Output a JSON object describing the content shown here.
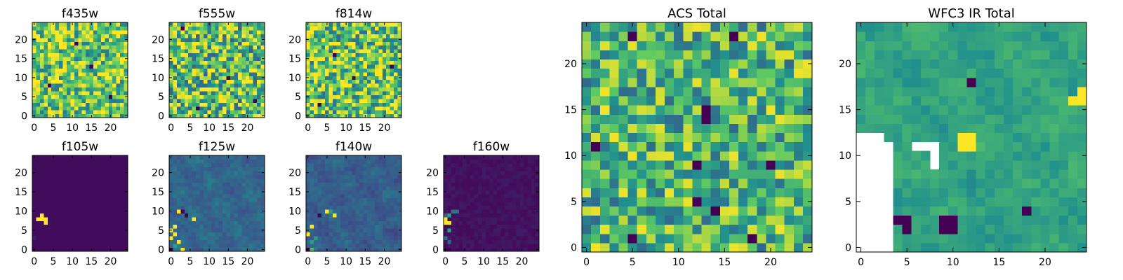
{
  "colormap": {
    "name": "viridis",
    "stops": [
      "#440154",
      "#3b528b",
      "#21908d",
      "#5dc963",
      "#fde725"
    ]
  },
  "chart_data": [
    {
      "type": "heatmap",
      "title": "f435w",
      "nx": 25,
      "ny": 25,
      "xlim": [
        0,
        24
      ],
      "ylim": [
        0,
        24
      ],
      "origin": "lower",
      "xticks": [
        0,
        5,
        10,
        15,
        20
      ],
      "yticks": [
        0,
        5,
        10,
        15,
        20
      ],
      "pattern": "random",
      "mean": 0.75,
      "spread": 0.35,
      "seed": 11,
      "outliers": [
        {
          "x": 11,
          "y": 19,
          "value": 0.0
        },
        {
          "x": 15,
          "y": 13,
          "value": 0.0
        },
        {
          "x": 4,
          "y": 8,
          "value": 0.0
        },
        {
          "x": 20,
          "y": 5,
          "value": 0.0
        }
      ]
    },
    {
      "type": "heatmap",
      "title": "f555w",
      "nx": 25,
      "ny": 25,
      "xlim": [
        0,
        24
      ],
      "ylim": [
        0,
        24
      ],
      "origin": "lower",
      "xticks": [
        0,
        5,
        10,
        15,
        20
      ],
      "yticks": [
        0,
        5,
        10,
        15,
        20
      ],
      "pattern": "random",
      "mean": 0.72,
      "spread": 0.4,
      "seed": 23,
      "outliers": [
        {
          "x": 3,
          "y": 23,
          "value": 0.0
        },
        {
          "x": 15,
          "y": 10,
          "value": 0.0
        },
        {
          "x": 22,
          "y": 4,
          "value": 0.0
        },
        {
          "x": 7,
          "y": 2,
          "value": 0.0
        }
      ]
    },
    {
      "type": "heatmap",
      "title": "f814w",
      "nx": 25,
      "ny": 25,
      "xlim": [
        0,
        24
      ],
      "ylim": [
        0,
        24
      ],
      "origin": "lower",
      "xticks": [
        0,
        5,
        10,
        15,
        20
      ],
      "yticks": [
        0,
        5,
        10,
        15,
        20
      ],
      "pattern": "random",
      "mean": 0.74,
      "spread": 0.38,
      "seed": 37,
      "outliers": [
        {
          "x": 7,
          "y": 16,
          "value": 0.0
        },
        {
          "x": 22,
          "y": 13,
          "value": 0.0
        },
        {
          "x": 12,
          "y": 10,
          "value": 0.0
        },
        {
          "x": 3,
          "y": 3,
          "value": 0.0
        }
      ]
    },
    {
      "type": "heatmap",
      "title": "f105w",
      "nx": 25,
      "ny": 25,
      "xlim": [
        0,
        24
      ],
      "ylim": [
        0,
        24
      ],
      "origin": "lower",
      "xticks": [
        0,
        5,
        10,
        15,
        20
      ],
      "yticks": [
        0,
        5,
        10,
        15,
        20
      ],
      "pattern": "flat",
      "background": 0.0,
      "noise": 0.01,
      "seed": 5,
      "hotspots": [
        {
          "x": 1,
          "y": 8,
          "value": 1.0
        },
        {
          "x": 2,
          "y": 8,
          "value": 1.0
        },
        {
          "x": 2,
          "y": 9,
          "value": 1.0
        },
        {
          "x": 3,
          "y": 8,
          "value": 1.0
        },
        {
          "x": 3,
          "y": 7,
          "value": 1.0
        },
        {
          "x": 4,
          "y": 7,
          "value": 0.05
        },
        {
          "x": 0,
          "y": 3,
          "value": 0.08
        }
      ]
    },
    {
      "type": "heatmap",
      "title": "f125w",
      "nx": 25,
      "ny": 25,
      "xlim": [
        0,
        24
      ],
      "ylim": [
        0,
        24
      ],
      "origin": "lower",
      "xticks": [
        0,
        5,
        10,
        15,
        20
      ],
      "yticks": [
        0,
        5,
        10,
        15,
        20
      ],
      "pattern": "smooth",
      "background": 0.33,
      "noise": 0.05,
      "seed": 7,
      "hotspots": [
        {
          "x": 0,
          "y": 3,
          "value": 1.0
        },
        {
          "x": 0,
          "y": 5,
          "value": 1.0
        },
        {
          "x": 1,
          "y": 4,
          "value": 1.0
        },
        {
          "x": 1,
          "y": 6,
          "value": 1.0
        },
        {
          "x": 2,
          "y": 2,
          "value": 1.0
        },
        {
          "x": 2,
          "y": 10,
          "value": 1.0
        },
        {
          "x": 3,
          "y": 0,
          "value": 1.0
        },
        {
          "x": 3,
          "y": 10,
          "value": 0.0
        },
        {
          "x": 4,
          "y": 9,
          "value": 0.0
        },
        {
          "x": 6,
          "y": 8,
          "value": 1.0
        },
        {
          "x": 0,
          "y": 0,
          "value": 0.0
        },
        {
          "x": 1,
          "y": 1,
          "value": 0.55
        }
      ]
    },
    {
      "type": "heatmap",
      "title": "f140w",
      "nx": 25,
      "ny": 25,
      "xlim": [
        0,
        24
      ],
      "ylim": [
        0,
        24
      ],
      "origin": "lower",
      "xticks": [
        0,
        5,
        10,
        15,
        20
      ],
      "yticks": [
        0,
        5,
        10,
        15,
        20
      ],
      "pattern": "smooth",
      "background": 0.3,
      "noise": 0.05,
      "seed": 9,
      "hotspots": [
        {
          "x": 0,
          "y": 4,
          "value": 1.0
        },
        {
          "x": 1,
          "y": 6,
          "value": 1.0
        },
        {
          "x": 1,
          "y": 2,
          "value": 0.55
        },
        {
          "x": 2,
          "y": 3,
          "value": 0.55
        },
        {
          "x": 3,
          "y": 9,
          "value": 0.0
        },
        {
          "x": 5,
          "y": 10,
          "value": 1.0
        },
        {
          "x": 6,
          "y": 10,
          "value": 0.55
        },
        {
          "x": 7,
          "y": 9,
          "value": 1.0
        },
        {
          "x": 0,
          "y": 0,
          "value": 0.0
        },
        {
          "x": 1,
          "y": 0,
          "value": 0.7
        }
      ]
    },
    {
      "type": "heatmap",
      "title": "f160w",
      "nx": 25,
      "ny": 25,
      "xlim": [
        0,
        24
      ],
      "ylim": [
        0,
        24
      ],
      "origin": "lower",
      "xticks": [
        0,
        5,
        10,
        15,
        20
      ],
      "yticks": [
        0,
        5,
        10,
        15,
        20
      ],
      "pattern": "flat",
      "background": 0.05,
      "noise": 0.03,
      "seed": 13,
      "hotspots": [
        {
          "x": 0,
          "y": 7,
          "value": 1.0
        },
        {
          "x": 0,
          "y": 8,
          "value": 1.0
        },
        {
          "x": 1,
          "y": 7,
          "value": 1.0
        },
        {
          "x": 1,
          "y": 9,
          "value": 0.55
        },
        {
          "x": 1,
          "y": 5,
          "value": 0.55
        },
        {
          "x": 0,
          "y": 3,
          "value": 0.35
        },
        {
          "x": 2,
          "y": 10,
          "value": 0.4
        },
        {
          "x": 3,
          "y": 10,
          "value": 0.35
        },
        {
          "x": 1,
          "y": 0,
          "value": 0.0
        },
        {
          "x": 1,
          "y": 2,
          "value": 0.3
        },
        {
          "x": 0,
          "y": 9,
          "value": 0.3
        }
      ]
    },
    {
      "type": "heatmap",
      "title": "ACS Total",
      "nx": 25,
      "ny": 25,
      "xlim": [
        0,
        24
      ],
      "ylim": [
        0,
        24
      ],
      "origin": "lower",
      "xticks": [
        0,
        5,
        10,
        15,
        20
      ],
      "yticks": [
        0,
        5,
        10,
        15,
        20
      ],
      "pattern": "random",
      "mean": 0.66,
      "spread": 0.32,
      "seed": 41,
      "outliers": [
        {
          "x": 5,
          "y": 23,
          "value": 0.0
        },
        {
          "x": 16,
          "y": 23,
          "value": 0.0
        },
        {
          "x": 13,
          "y": 15,
          "value": 0.0
        },
        {
          "x": 13,
          "y": 14,
          "value": 0.0
        },
        {
          "x": 1,
          "y": 11,
          "value": 0.0
        },
        {
          "x": 12,
          "y": 9,
          "value": 0.0
        },
        {
          "x": 12,
          "y": 5,
          "value": 0.0
        },
        {
          "x": 14,
          "y": 4,
          "value": 0.0
        },
        {
          "x": 18,
          "y": 1,
          "value": 0.0
        },
        {
          "x": 5,
          "y": 1,
          "value": 0.0
        },
        {
          "x": 20,
          "y": 9,
          "value": 0.0
        }
      ]
    },
    {
      "type": "heatmap",
      "title": "WFC3 IR Total",
      "nx": 25,
      "ny": 25,
      "xlim": [
        0,
        24
      ],
      "ylim": [
        0,
        24
      ],
      "origin": "lower",
      "xticks": [
        0,
        5,
        10,
        15,
        20
      ],
      "yticks": [
        0,
        5,
        10,
        15,
        20
      ],
      "pattern": "smooth",
      "background": 0.58,
      "noise": 0.06,
      "seed": 17,
      "hotspots": [
        {
          "x": 24,
          "y": 16,
          "value": 1.0
        },
        {
          "x": 23,
          "y": 16,
          "value": 1.0
        },
        {
          "x": 24,
          "y": 17,
          "value": 1.0
        },
        {
          "x": 11,
          "y": 12,
          "value": 1.0
        },
        {
          "x": 11,
          "y": 11,
          "value": 1.0
        },
        {
          "x": 12,
          "y": 12,
          "value": 1.0
        },
        {
          "x": 12,
          "y": 11,
          "value": 1.0
        },
        {
          "x": 12,
          "y": 18,
          "value": 0.0
        },
        {
          "x": 4,
          "y": 3,
          "value": 0.0
        },
        {
          "x": 5,
          "y": 2,
          "value": 0.0
        },
        {
          "x": 5,
          "y": 3,
          "value": 0.0
        },
        {
          "x": 9,
          "y": 2,
          "value": 0.0
        },
        {
          "x": 9,
          "y": 3,
          "value": 0.0
        },
        {
          "x": 10,
          "y": 2,
          "value": 0.0
        },
        {
          "x": 10,
          "y": 3,
          "value": 0.0
        },
        {
          "x": 18,
          "y": 4,
          "value": 0.0
        }
      ],
      "masked_regions": [
        [
          0,
          0,
          3,
          11
        ],
        [
          0,
          0,
          2,
          12
        ],
        [
          6,
          11,
          8,
          11
        ],
        [
          8,
          9,
          8,
          10
        ]
      ]
    }
  ]
}
